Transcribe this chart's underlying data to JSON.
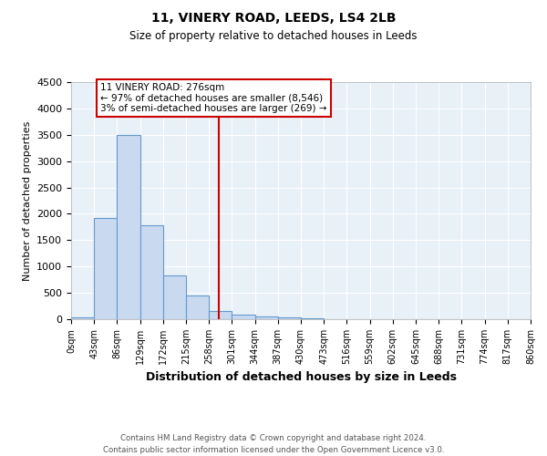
{
  "title": "11, VINERY ROAD, LEEDS, LS4 2LB",
  "subtitle": "Size of property relative to detached houses in Leeds",
  "xlabel": "Distribution of detached houses by size in Leeds",
  "ylabel": "Number of detached properties",
  "bar_edges": [
    0,
    43,
    86,
    129,
    172,
    215,
    258,
    301,
    344,
    387,
    430,
    473,
    516,
    559,
    602,
    645,
    688,
    731,
    774,
    817,
    860
  ],
  "bar_heights": [
    30,
    1920,
    3500,
    1780,
    830,
    450,
    150,
    90,
    50,
    30,
    25,
    0,
    0,
    0,
    0,
    0,
    0,
    0,
    0,
    0
  ],
  "bar_color": "#c9d9f0",
  "bar_edge_color": "#6699cc",
  "vline_x": 276,
  "vline_color": "#cc0000",
  "annotation_text": "11 VINERY ROAD: 276sqm\n← 97% of detached houses are smaller (8,546)\n3% of semi-detached houses are larger (269) →",
  "annotation_box_color": "#ffffff",
  "annotation_box_edge": "#cc0000",
  "ylim": [
    0,
    4500
  ],
  "background_color": "#e8f0f8",
  "grid_color": "#ffffff",
  "footer_line1": "Contains HM Land Registry data © Crown copyright and database right 2024.",
  "footer_line2": "Contains public sector information licensed under the Open Government Licence v3.0.",
  "tick_labels": [
    "0sqm",
    "43sqm",
    "86sqm",
    "129sqm",
    "172sqm",
    "215sqm",
    "258sqm",
    "301sqm",
    "344sqm",
    "387sqm",
    "430sqm",
    "473sqm",
    "516sqm",
    "559sqm",
    "602sqm",
    "645sqm",
    "688sqm",
    "731sqm",
    "774sqm",
    "817sqm",
    "860sqm"
  ]
}
